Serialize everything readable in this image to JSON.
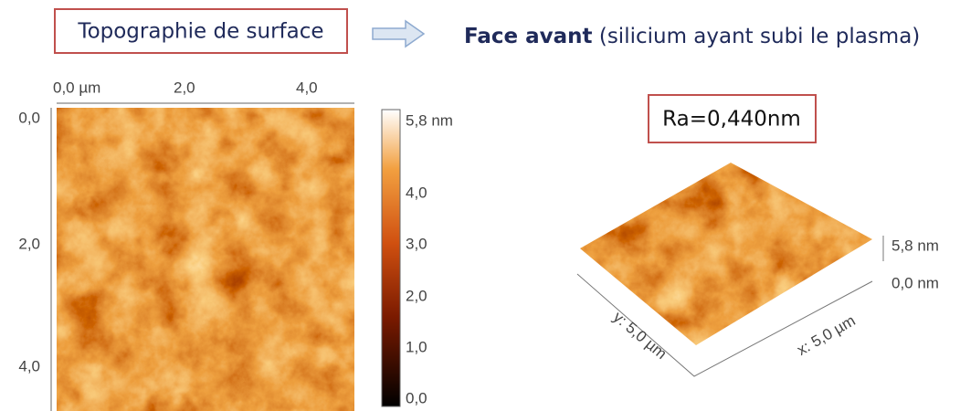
{
  "header": {
    "label": "Topographie de surface",
    "title_bold": "Face avant",
    "title_rest": " (silicium ayant subi le plasma)"
  },
  "map2d": {
    "x_ticks": [
      "0,0 µm",
      "2,0",
      "4,0"
    ],
    "y_ticks": [
      "0,0",
      "2,0",
      "4,0"
    ]
  },
  "colorbar": {
    "labels": [
      "5,8 nm",
      "4,0",
      "3,0",
      "2,0",
      "1,0",
      "0,0"
    ]
  },
  "roughness": "Ra=0,440nm",
  "map3d": {
    "z_max": "5,8 nm",
    "z_min": "0,0 nm",
    "y_axis": "y: 5,0 µm",
    "x_axis": "x: 5,0 µm"
  }
}
